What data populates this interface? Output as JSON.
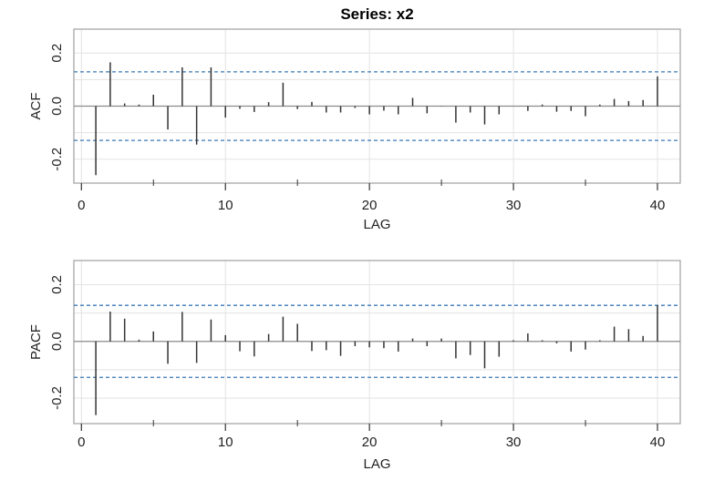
{
  "chart_data": [
    {
      "type": "bar",
      "title": "Series:  x2",
      "xlabel": "LAG",
      "ylabel": "ACF",
      "xlim": [
        0,
        40
      ],
      "ylim": [
        -0.29,
        0.29
      ],
      "xticks": [
        "0",
        "10",
        "20",
        "30",
        "40"
      ],
      "yticks": [
        "-0.2",
        "0.0",
        "0.2"
      ],
      "grid": true,
      "ci": 0.129,
      "lags": [
        1,
        2,
        3,
        4,
        5,
        6,
        7,
        8,
        9,
        10,
        11,
        12,
        13,
        14,
        15,
        16,
        17,
        18,
        19,
        20,
        21,
        22,
        23,
        24,
        25,
        26,
        27,
        28,
        29,
        30,
        31,
        32,
        33,
        34,
        35,
        36,
        37,
        38,
        39,
        40
      ],
      "values": [
        -0.26,
        0.165,
        0.01,
        0.006,
        0.043,
        -0.088,
        0.146,
        -0.145,
        0.146,
        -0.043,
        -0.01,
        -0.022,
        0.015,
        0.088,
        -0.011,
        0.016,
        -0.024,
        -0.024,
        -0.007,
        -0.031,
        -0.017,
        -0.031,
        0.031,
        -0.027,
        -0.001,
        -0.062,
        -0.024,
        -0.069,
        -0.031,
        0.0,
        -0.018,
        0.006,
        -0.021,
        -0.018,
        -0.038,
        0.006,
        0.027,
        0.019,
        0.023,
        0.112
      ]
    },
    {
      "type": "bar",
      "title": "",
      "xlabel": "LAG",
      "ylabel": "PACF",
      "xlim": [
        0,
        40
      ],
      "ylim": [
        -0.29,
        0.285
      ],
      "xticks": [
        "0",
        "10",
        "20",
        "30",
        "40"
      ],
      "yticks": [
        "-0.2",
        "0.0",
        "0.2"
      ],
      "grid": true,
      "ci": 0.127,
      "lags": [
        1,
        2,
        3,
        4,
        5,
        6,
        7,
        8,
        9,
        10,
        11,
        12,
        13,
        14,
        15,
        16,
        17,
        18,
        19,
        20,
        21,
        22,
        23,
        24,
        25,
        26,
        27,
        28,
        29,
        30,
        31,
        32,
        33,
        34,
        35,
        36,
        37,
        38,
        39,
        40
      ],
      "values": [
        -0.26,
        0.105,
        0.08,
        0.006,
        0.035,
        -0.079,
        0.104,
        -0.076,
        0.077,
        0.022,
        -0.035,
        -0.053,
        0.026,
        0.087,
        0.062,
        -0.034,
        -0.031,
        -0.051,
        -0.017,
        -0.021,
        -0.024,
        -0.036,
        0.01,
        -0.017,
        0.01,
        -0.06,
        -0.048,
        -0.095,
        -0.054,
        0.004,
        0.028,
        0.004,
        -0.007,
        -0.036,
        -0.029,
        0.004,
        0.052,
        0.043,
        0.019,
        0.128
      ]
    }
  ],
  "colors": {
    "bar": "#333333",
    "ci": "#3b78b5",
    "grid": "#e3e3e3",
    "zero": "#8c8c8c",
    "frame": "#a8a8a8"
  }
}
